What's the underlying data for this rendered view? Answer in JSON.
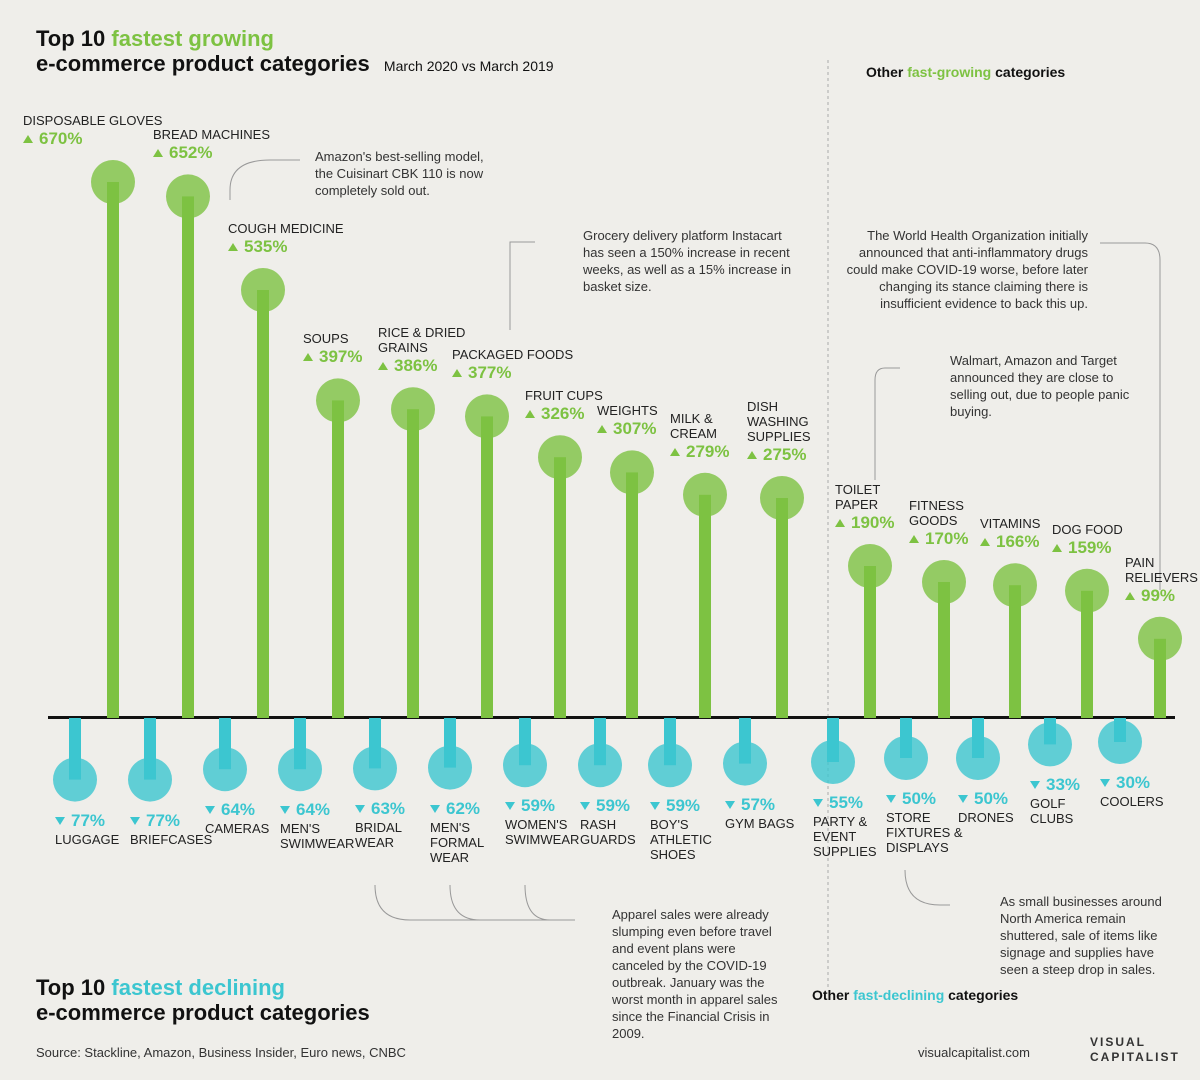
{
  "chart_data": [
    {
      "type": "lollipop",
      "title": [
        "Top 10",
        "fastest growing",
        "e-commerce product categories"
      ],
      "subtitle": "March 2020 vs March 2019",
      "categories": [
        "DISPOSABLE GLOVES",
        "BREAD MACHINES",
        "COUGH MEDICINE",
        "SOUPS",
        "RICE & DRIED GRAINS",
        "PACKAGED FOODS",
        "FRUIT CUPS",
        "WEIGHTS",
        "MILK & CREAM",
        "DISH WASHING SUPPLIES"
      ],
      "values": [
        670,
        652,
        535,
        397,
        386,
        377,
        326,
        307,
        279,
        275
      ],
      "value_labels": [
        "670%",
        "652%",
        "535%",
        "397%",
        "386%",
        "377%",
        "326%",
        "307%",
        "279%",
        "275%"
      ],
      "color": "#7dc242"
    },
    {
      "type": "lollipop",
      "title": [
        "Other",
        "fast-growing",
        "categories"
      ],
      "categories": [
        "TOILET PAPER",
        "FITNESS GOODS",
        "VITAMINS",
        "DOG FOOD",
        "PAIN RELIEVERS"
      ],
      "values": [
        190,
        170,
        166,
        159,
        99
      ],
      "value_labels": [
        "190%",
        "170%",
        "166%",
        "159%",
        "99%"
      ],
      "color": "#7dc242"
    },
    {
      "type": "lollipop",
      "title": [
        "Top 10",
        "fastest declining",
        "e-commerce product categories"
      ],
      "categories": [
        "LUGGAGE",
        "BRIEFCASES",
        "CAMERAS",
        "MEN'S SWIMWEAR",
        "BRIDAL WEAR",
        "MEN'S FORMAL WEAR",
        "WOMEN'S SWIMWEAR",
        "RASH GUARDS",
        "BOY'S ATHLETIC SHOES",
        "GYM BAGS"
      ],
      "values": [
        -77,
        -77,
        -64,
        -64,
        -63,
        -62,
        -59,
        -59,
        -59,
        -57
      ],
      "value_labels": [
        "77%",
        "77%",
        "64%",
        "64%",
        "63%",
        "62%",
        "59%",
        "59%",
        "59%",
        "57%"
      ],
      "color": "#3cc6d0"
    },
    {
      "type": "lollipop",
      "title": [
        "Other",
        "fast-declining",
        "categories"
      ],
      "categories": [
        "PARTY & EVENT SUPPLIES",
        "STORE FIXTURES & DISPLAYS",
        "DRONES",
        "GOLF CLUBS",
        "COOLERS"
      ],
      "values": [
        -55,
        -50,
        -50,
        -33,
        -30
      ],
      "value_labels": [
        "55%",
        "50%",
        "50%",
        "33%",
        "30%"
      ],
      "color": "#3cc6d0"
    }
  ],
  "annotations": [
    "Amazon's best-selling model, the Cuisinart CBK 110 is now completely sold out.",
    "Grocery delivery platform Instacart has seen a 150% increase in recent weeks, as well as a 15% increase in basket size.",
    "The World Health Organization initially announced that anti-inflammatory drugs could make COVID-19 worse, before later changing its stance claiming there is insufficient evidence to back this up.",
    "Walmart, Amazon and Target announced they are close to selling out, due to people panic buying.",
    "Apparel sales were already slumping even before travel and event plans were canceled by the COVID-19 outbreak. January was the worst month in apparel sales since the Financial Crisis in 2009.",
    "As small businesses around North America remain shuttered, sale of items like signage and supplies have seen a steep drop in sales."
  ],
  "source": "Source: Stackline, Amazon, Business Insider, Euro news, CNBC",
  "footer": {
    "site": "visualcapitalist.com",
    "brand": [
      "VISUAL",
      "CAPITALIST"
    ]
  }
}
